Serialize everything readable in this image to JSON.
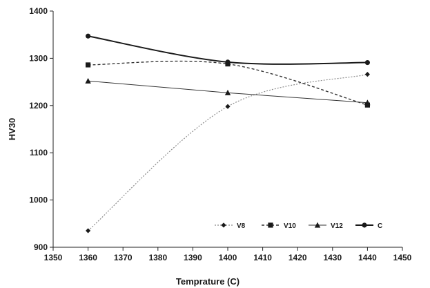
{
  "chart_data": {
    "type": "line",
    "xlabel": "Temprature (C)",
    "ylabel": "HV30",
    "xlim": [
      1350,
      1450
    ],
    "ylim": [
      900,
      1400
    ],
    "x_ticks": [
      1350,
      1360,
      1370,
      1380,
      1390,
      1400,
      1410,
      1420,
      1430,
      1440,
      1450
    ],
    "y_ticks": [
      900,
      1000,
      1100,
      1200,
      1300,
      1400
    ],
    "grid": false,
    "legend_position": "bottom-right",
    "x": [
      1360,
      1400,
      1440
    ],
    "series": [
      {
        "name": "V8",
        "values": [
          935,
          1198,
          1266
        ],
        "marker": "diamond",
        "line": "dotted",
        "color": "#8c8c8c",
        "smooth": true
      },
      {
        "name": "V10",
        "values": [
          1286,
          1288,
          1201
        ],
        "marker": "square",
        "line": "dashed",
        "color": "#333333",
        "smooth": true
      },
      {
        "name": "V12",
        "values": [
          1252,
          1227,
          1206
        ],
        "marker": "triangle",
        "line": "solid-thin",
        "color": "#333333",
        "smooth": false
      },
      {
        "name": "C",
        "values": [
          1347,
          1292,
          1291
        ],
        "marker": "circle",
        "line": "solid-thick",
        "color": "#1a1a1a",
        "smooth": true
      }
    ]
  }
}
